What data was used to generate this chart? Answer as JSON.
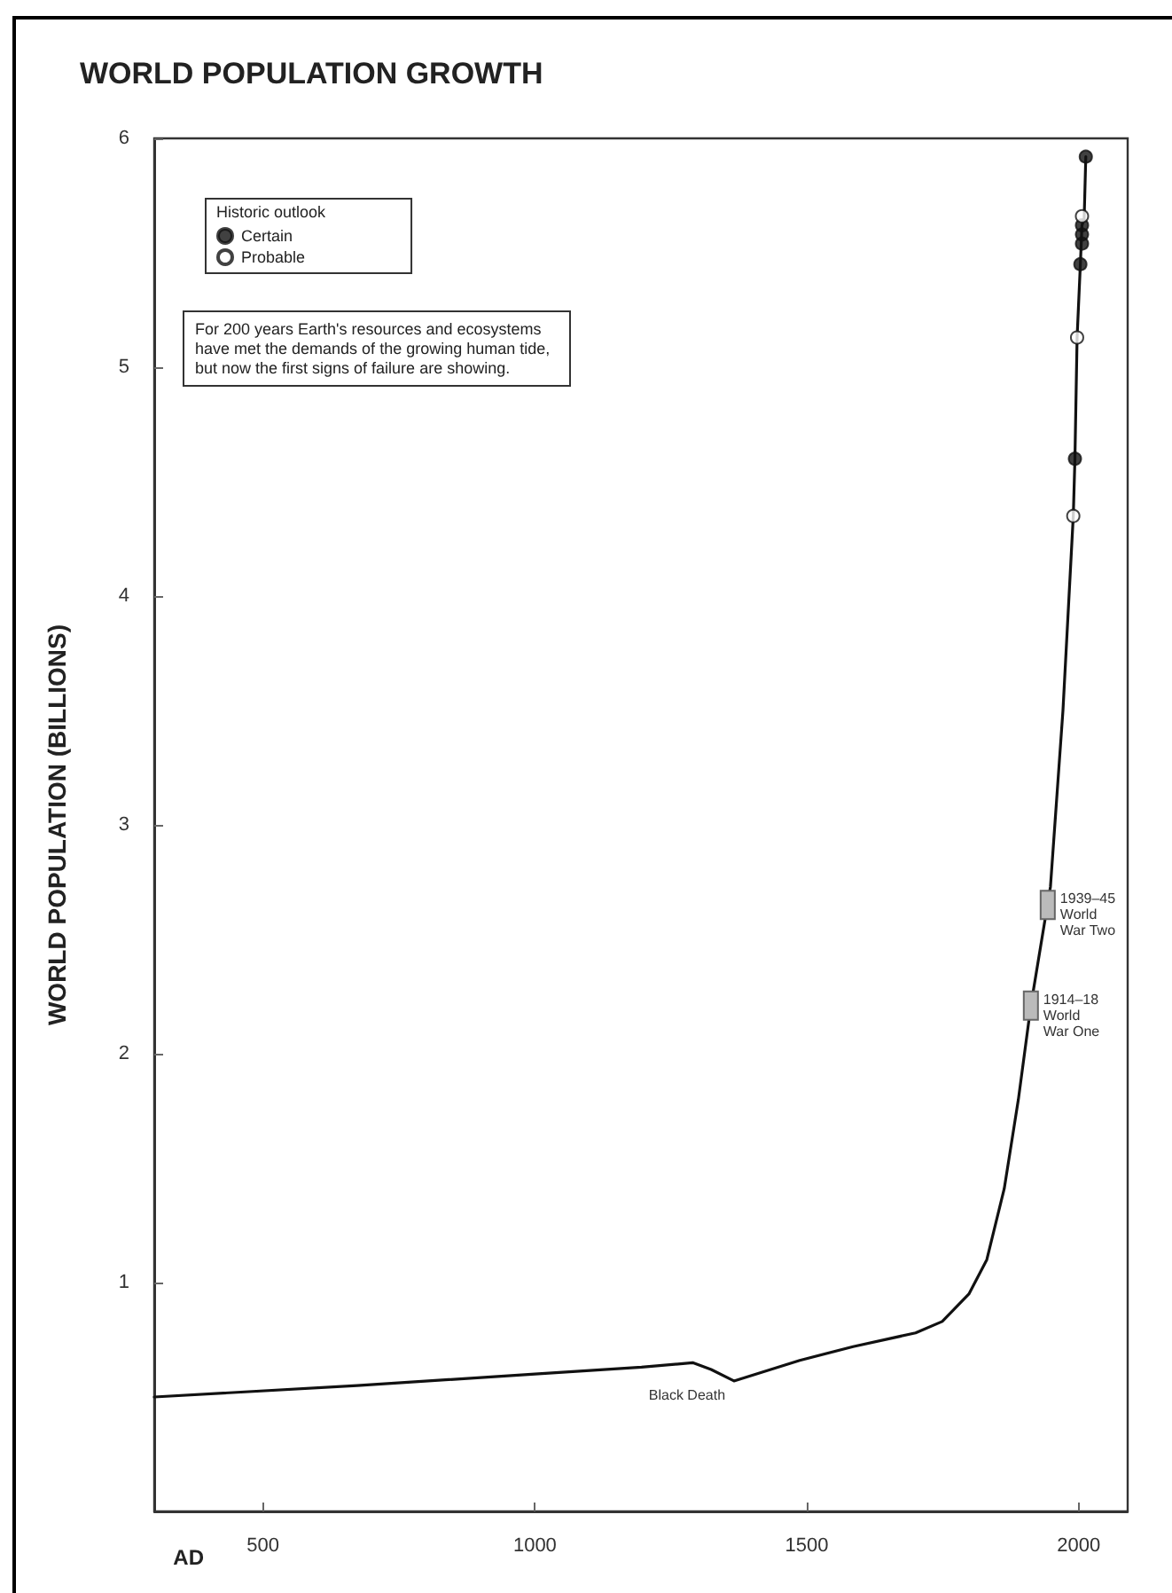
{
  "chart_data": {
    "type": "line",
    "title": "WORLD POPULATION GROWTH",
    "xlabel": "AD",
    "ylabel": "WORLD POPULATION (BILLIONS)",
    "legend_title": "Historic outlook",
    "xlim": [
      300,
      2090
    ],
    "xticks": [
      500,
      1000,
      1500,
      2000
    ],
    "ylim": [
      0,
      6
    ],
    "yticks": [
      1,
      2,
      3,
      4,
      5,
      6
    ],
    "grid": false,
    "legend": "top left",
    "series": [
      {
        "marker": "none",
        "color": "#111111",
        "x": [
          300,
          673,
          1000,
          1196,
          1290,
          1324,
          1366,
          1487,
          1585,
          1700,
          1749,
          1798,
          1831,
          1863,
          1889,
          1912,
          1948,
          1971,
          1990,
          1993,
          1997,
          2003,
          2006,
          2010,
          2013
        ],
        "values": [
          0.5,
          0.55,
          0.6,
          0.63,
          0.65,
          0.62,
          0.57,
          0.66,
          0.72,
          0.78,
          0.83,
          0.95,
          1.1,
          1.41,
          1.8,
          2.21,
          2.73,
          3.5,
          4.35,
          4.6,
          5.13,
          5.45,
          5.62,
          5.65,
          5.92
        ]
      },
      {
        "type": "scatter",
        "name": "Certain",
        "marker": "circle",
        "color": "#111111",
        "x": [
          1993,
          2003,
          2006,
          2006,
          2006,
          2013
        ],
        "values": [
          4.6,
          5.45,
          5.54,
          5.58,
          5.62,
          5.92
        ]
      },
      {
        "type": "scatter",
        "name": "Probable",
        "marker": "circle",
        "color": "#ffffff",
        "x": [
          1990,
          1997,
          2006
        ],
        "values": [
          4.35,
          5.13,
          5.66
        ]
      }
    ],
    "annotations": [
      "For 200 years Earth's resources and ecosystems have met the demands of the growing human tide, but now the first signs of failure are showing.",
      {
        "text": "Black Death",
        "x": 1350,
        "y": 0.57
      },
      {
        "text": "1914–18\nWorld\nWar One",
        "x": 1912,
        "y": 2.21
      },
      {
        "text": "1939–45\nWorld\nWar Two",
        "x": 1943,
        "y": 2.65
      }
    ]
  }
}
